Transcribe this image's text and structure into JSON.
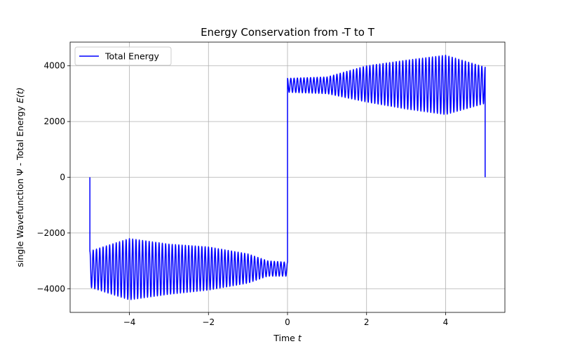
{
  "chart_data": {
    "type": "line",
    "title": "Energy Conservation from -T to T",
    "xlabel_main": "Time ",
    "xlabel_var": "t",
    "ylabel_main": "single Wavefunction Ψ - Total Energy ",
    "ylabel_var": "E(t)",
    "xlim": [
      -5.5,
      5.5
    ],
    "ylim": [
      -4850,
      4850
    ],
    "x_ticks": [
      {
        "value": -4,
        "label": "−4"
      },
      {
        "value": -2,
        "label": "−2"
      },
      {
        "value": 0,
        "label": "0"
      },
      {
        "value": 2,
        "label": "2"
      },
      {
        "value": 4,
        "label": "4"
      }
    ],
    "y_ticks": [
      {
        "value": -4000,
        "label": "−4000"
      },
      {
        "value": -2000,
        "label": "−2000"
      },
      {
        "value": 0,
        "label": "0"
      },
      {
        "value": 2000,
        "label": "2000"
      },
      {
        "value": 4000,
        "label": "4000"
      }
    ],
    "grid": true,
    "legend_position": "top-left",
    "series": [
      {
        "name": "Total Energy",
        "color": "#0000ff",
        "oscillation_cycles_per_half": 60,
        "baseline_point": {
          "x": -5,
          "y": 0
        },
        "segments": [
          {
            "x_range": [
              -5,
              0
            ],
            "upper_envelope": [
              [
                -5,
                -2650
              ],
              [
                -4,
                -2200
              ],
              [
                -3,
                -2400
              ],
              [
                -2,
                -2500
              ],
              [
                -1,
                -2750
              ],
              [
                -0.5,
                -3000
              ],
              [
                0,
                -3050
              ]
            ],
            "lower_envelope": [
              [
                -5,
                -3950
              ],
              [
                -4,
                -4400
              ],
              [
                -3,
                -4200
              ],
              [
                -2,
                -4050
              ],
              [
                -1,
                -3800
              ],
              [
                -0.5,
                -3550
              ],
              [
                0,
                -3550
              ]
            ]
          },
          {
            "x_range": [
              0,
              5
            ],
            "upper_envelope": [
              [
                0,
                3550
              ],
              [
                1,
                3600
              ],
              [
                2,
                4000
              ],
              [
                3,
                4200
              ],
              [
                4,
                4380
              ],
              [
                5,
                3950
              ]
            ],
            "lower_envelope": [
              [
                0,
                3050
              ],
              [
                1,
                3000
              ],
              [
                2,
                2700
              ],
              [
                3,
                2450
              ],
              [
                4,
                2250
              ],
              [
                5,
                2650
              ]
            ]
          }
        ],
        "end_point": {
          "x": 5,
          "y": 0
        }
      }
    ]
  }
}
